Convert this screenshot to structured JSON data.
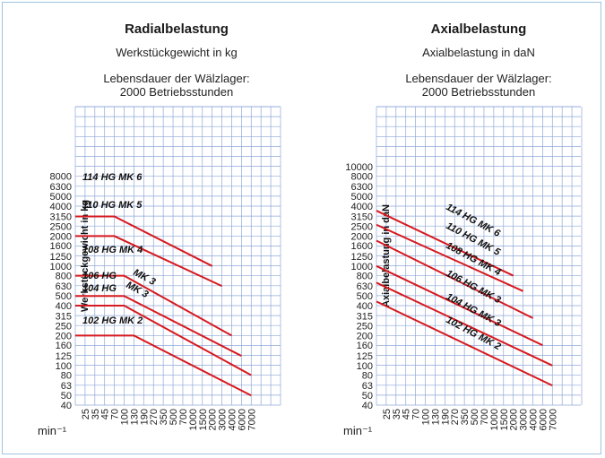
{
  "chart_data": [
    {
      "type": "line",
      "title": "Radialbelastung",
      "subtitle": "Werkstückgewicht in kg",
      "note_line1": "Lebensdauer der Wälzlager:",
      "note_line2": "2000 Betriebsstunden",
      "ylabel": "Werkstückgewicht in kg",
      "xlabel": "min⁻¹",
      "y_ticks": [
        "40",
        "50",
        "63",
        "80",
        "100",
        "125",
        "160",
        "200",
        "250",
        "315",
        "400",
        "500",
        "630",
        "800",
        "1000",
        "1250",
        "1600",
        "2000",
        "2500",
        "3150",
        "4000",
        "5000",
        "6300",
        "8000"
      ],
      "x_ticks": [
        "25",
        "35",
        "45",
        "70",
        "100",
        "130",
        "190",
        "270",
        "350",
        "500",
        "700",
        "1000",
        "1500",
        "2000",
        "3000",
        "4000",
        "6000",
        "7000"
      ],
      "series": [
        {
          "name": "114 HG MK 6",
          "points": [
            [
              0,
              3150
            ],
            [
              70,
              3150
            ],
            [
              2000,
              1000
            ]
          ]
        },
        {
          "name": "110 HG MK 5",
          "points": [
            [
              0,
              2000
            ],
            [
              70,
              2000
            ],
            [
              3000,
              630
            ]
          ]
        },
        {
          "name": "108 HG MK 4",
          "points": [
            [
              0,
              800
            ],
            [
              100,
              800
            ],
            [
              4000,
              200
            ]
          ]
        },
        {
          "name": "106 HG MK 3",
          "points": [
            [
              0,
              500
            ],
            [
              100,
              500
            ],
            [
              6000,
              125
            ]
          ]
        },
        {
          "name": "104 HG MK 3",
          "points": [
            [
              0,
              400
            ],
            [
              100,
              400
            ],
            [
              7000,
              80
            ]
          ]
        },
        {
          "name": "102 HG MK 2",
          "points": [
            [
              0,
              200
            ],
            [
              130,
              200
            ],
            [
              7000,
              50
            ]
          ]
        }
      ]
    },
    {
      "type": "line",
      "title": "Axialbelastung",
      "subtitle": "Axialbelastung in daN",
      "note_line1": "Lebensdauer der Wälzlager:",
      "note_line2": "2000 Betriebsstunden",
      "ylabel": "Axialbelastung in daN",
      "xlabel": "min⁻¹",
      "y_ticks": [
        "40",
        "50",
        "63",
        "80",
        "100",
        "125",
        "160",
        "200",
        "250",
        "315",
        "400",
        "500",
        "630",
        "800",
        "1000",
        "1250",
        "1600",
        "2000",
        "2500",
        "3150",
        "4000",
        "5000",
        "6300",
        "8000",
        "10000"
      ],
      "x_ticks": [
        "25",
        "35",
        "45",
        "70",
        "100",
        "130",
        "190",
        "270",
        "350",
        "500",
        "700",
        "1000",
        "1500",
        "2000",
        "3000",
        "4000",
        "6000",
        "7000"
      ],
      "series": [
        {
          "name": "114 HG MK 6",
          "points": [
            [
              0,
              3600
            ],
            [
              2000,
              800
            ]
          ]
        },
        {
          "name": "110 HG MK 5",
          "points": [
            [
              0,
              2600
            ],
            [
              3000,
              560
            ]
          ]
        },
        {
          "name": "108 HG MK 4",
          "points": [
            [
              0,
              1800
            ],
            [
              4000,
              300
            ]
          ]
        },
        {
          "name": "106 HG MK 3",
          "points": [
            [
              0,
              1000
            ],
            [
              6000,
              160
            ]
          ]
        },
        {
          "name": "104 HG MK 3",
          "points": [
            [
              0,
              680
            ],
            [
              7000,
              100
            ]
          ]
        },
        {
          "name": "102 HG MK 2",
          "points": [
            [
              0,
              440
            ],
            [
              7000,
              63
            ]
          ]
        }
      ]
    }
  ]
}
